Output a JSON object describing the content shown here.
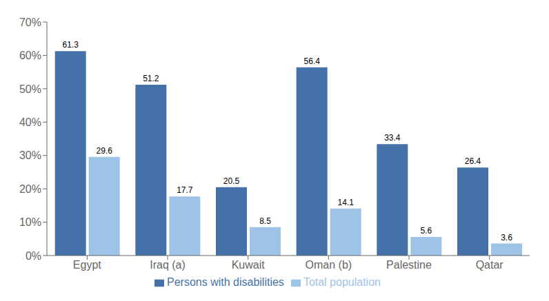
{
  "chart_data": {
    "type": "bar",
    "categories": [
      "Egypt",
      "Iraq (a)",
      "Kuwait",
      "Oman (b)",
      "Palestine",
      "Qatar"
    ],
    "series": [
      {
        "name": "Persons with disabilities",
        "color": "#4472A8",
        "values": [
          61.3,
          51.2,
          20.5,
          56.4,
          33.4,
          26.4
        ]
      },
      {
        "name": "Total population",
        "color": "#9DC3E6",
        "values": [
          29.6,
          17.7,
          8.5,
          14.1,
          5.6,
          3.6
        ]
      }
    ],
    "ylim": [
      0,
      70
    ],
    "yticks": [
      {
        "value": 0,
        "label": "0%"
      },
      {
        "value": 10,
        "label": "10%"
      },
      {
        "value": 20,
        "label": "20%"
      },
      {
        "value": 30,
        "label": "30%"
      },
      {
        "value": 40,
        "label": "40%"
      },
      {
        "value": 50,
        "label": "50%"
      },
      {
        "value": 60,
        "label": "60%"
      },
      {
        "value": 70,
        "label": "70%"
      }
    ],
    "grid": false,
    "legend": "bottom",
    "data_labels": true
  }
}
